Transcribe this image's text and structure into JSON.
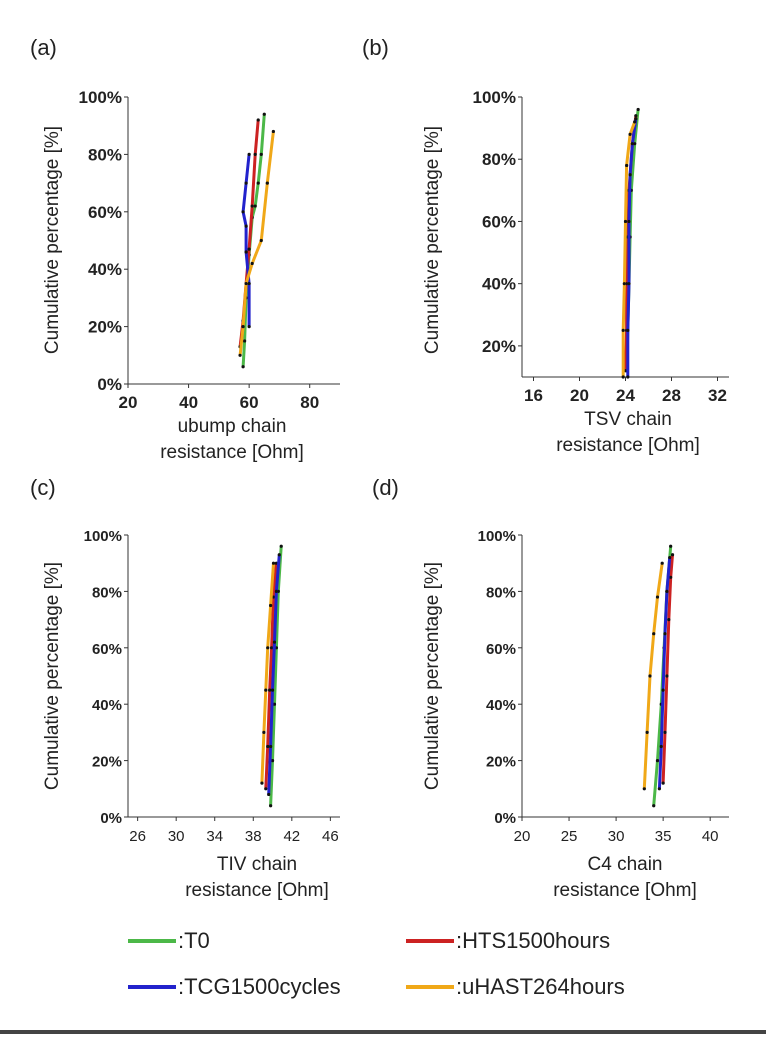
{
  "colors": {
    "T0": "#4cb848",
    "HTS1500hours": "#cc2222",
    "TCG1500cycles": "#2222cc",
    "uHAST264hours": "#f0a818",
    "axis": "#333333",
    "marker": "#111111"
  },
  "legend": [
    {
      "key": "T0",
      "label": ":T0",
      "color": "#4cb848"
    },
    {
      "key": "HTS1500hours",
      "label": ":HTS1500hours",
      "color": "#cc2222"
    },
    {
      "key": "TCG1500cycles",
      "label": ":TCG1500cycles",
      "color": "#2222cc"
    },
    {
      "key": "uHAST264hours",
      "label": ":uHAST264hours",
      "color": "#f0a818"
    }
  ],
  "chart_data": [
    {
      "panel": "(a)",
      "type": "line",
      "title": "",
      "xlabel": "ubump chain resistance [Ohm]",
      "ylabel": "Cumulative percentage [%]",
      "xlim": [
        20,
        90
      ],
      "ylim": [
        0,
        100
      ],
      "xticks": [
        20,
        40,
        60,
        80
      ],
      "xtick_labels": [
        "20",
        "40",
        "60",
        "80"
      ],
      "yticks": [
        0,
        20,
        40,
        60,
        80,
        100
      ],
      "ytick_labels": [
        "0%",
        "20%",
        "40%",
        "60%",
        "80%",
        "100%"
      ],
      "series": [
        {
          "name": ":T0",
          "color": "#4cb848",
          "x": [
            58,
            58.5,
            59,
            60,
            61,
            62,
            63,
            64,
            65
          ],
          "y": [
            6,
            15,
            30,
            45,
            58,
            62,
            70,
            80,
            94
          ]
        },
        {
          "name": ":HTS1500hours",
          "color": "#cc2222",
          "x": [
            57,
            58,
            59,
            60,
            61,
            62,
            63
          ],
          "y": [
            13,
            22,
            35,
            47,
            62,
            80,
            92
          ]
        },
        {
          "name": ":TCG1500cycles",
          "color": "#2222cc",
          "x": [
            60,
            60,
            59,
            59,
            58,
            59,
            60
          ],
          "y": [
            20,
            35,
            46,
            55,
            60,
            70,
            80
          ]
        },
        {
          "name": ":uHAST264hours",
          "color": "#f0a818",
          "x": [
            57,
            58,
            59,
            61,
            64,
            66,
            68
          ],
          "y": [
            10,
            20,
            35,
            42,
            50,
            70,
            88
          ]
        }
      ]
    },
    {
      "panel": "(b)",
      "type": "line",
      "title": "",
      "xlabel": "TSV chain resistance [Ohm]",
      "ylabel": "Cumulative percentage [%]",
      "xlim": [
        15,
        33
      ],
      "ylim": [
        10,
        100
      ],
      "xticks": [
        16,
        20,
        24,
        28,
        32
      ],
      "xtick_labels": [
        "16",
        "20",
        "24",
        "28",
        "32"
      ],
      "yticks": [
        20,
        40,
        60,
        80,
        100
      ],
      "ytick_labels": [
        "20%",
        "40%",
        "60%",
        "80%",
        "100%"
      ],
      "series": [
        {
          "name": ":T0",
          "color": "#4cb848",
          "x": [
            24.1,
            24.2,
            24.3,
            24.4,
            24.5,
            24.8,
            25.1
          ],
          "y": [
            12,
            25,
            40,
            55,
            70,
            85,
            96
          ]
        },
        {
          "name": ":HTS1500hours",
          "color": "#cc2222",
          "x": [
            24,
            24.1,
            24.1,
            24.2,
            24.3,
            24.6,
            24.9
          ],
          "y": [
            12,
            25,
            40,
            55,
            70,
            85,
            94
          ]
        },
        {
          "name": ":TCG1500cycles",
          "color": "#2222cc",
          "x": [
            24.2,
            24.2,
            24.3,
            24.3,
            24.4,
            24.6,
            24.9
          ],
          "y": [
            10,
            25,
            40,
            60,
            75,
            85,
            93
          ]
        },
        {
          "name": ":uHAST264hours",
          "color": "#f0a818",
          "x": [
            23.8,
            23.8,
            23.9,
            24,
            24.1,
            24.4,
            24.8
          ],
          "y": [
            10,
            25,
            40,
            60,
            78,
            88,
            92
          ]
        }
      ]
    },
    {
      "panel": "(c)",
      "type": "line",
      "title": "",
      "xlabel": "TIV chain resistance [Ohm]",
      "ylabel": "Cumulative percentage [%]",
      "xlim": [
        25,
        47
      ],
      "ylim": [
        0,
        100
      ],
      "xticks": [
        26,
        30,
        34,
        38,
        42,
        46
      ],
      "xtick_labels": [
        "26",
        "30",
        "34",
        "38",
        "42",
        "46"
      ],
      "yticks": [
        0,
        20,
        40,
        60,
        80,
        100
      ],
      "ytick_labels": [
        "0%",
        "20%",
        "40%",
        "60%",
        "80%",
        "100%"
      ],
      "series": [
        {
          "name": ":T0",
          "color": "#4cb848",
          "x": [
            39.8,
            40,
            40.2,
            40.4,
            40.6,
            40.9
          ],
          "y": [
            4,
            20,
            40,
            60,
            80,
            96
          ]
        },
        {
          "name": ":HTS1500hours",
          "color": "#cc2222",
          "x": [
            39.3,
            39.5,
            39.7,
            39.9,
            40.1,
            40.4
          ],
          "y": [
            10,
            25,
            45,
            60,
            78,
            90
          ]
        },
        {
          "name": ":TCG1500cycles",
          "color": "#2222cc",
          "x": [
            39.6,
            39.8,
            40,
            40.2,
            40.4,
            40.7
          ],
          "y": [
            8,
            25,
            45,
            62,
            80,
            93
          ]
        },
        {
          "name": ":uHAST264hours",
          "color": "#f0a818",
          "x": [
            38.9,
            39.1,
            39.3,
            39.5,
            39.8,
            40.1
          ],
          "y": [
            12,
            30,
            45,
            60,
            75,
            90
          ]
        }
      ]
    },
    {
      "panel": "(d)",
      "type": "line",
      "title": "",
      "xlabel": "C4 chain resistance [Ohm]",
      "ylabel": "Cumulative percentage [%]",
      "xlim": [
        20,
        42
      ],
      "ylim": [
        0,
        100
      ],
      "xticks": [
        20,
        25,
        30,
        35,
        40
      ],
      "xtick_labels": [
        "20",
        "25",
        "30",
        "35",
        "40"
      ],
      "yticks": [
        0,
        20,
        40,
        60,
        80,
        100
      ],
      "ytick_labels": [
        "0%",
        "20%",
        "40%",
        "60%",
        "80%",
        "100%"
      ],
      "series": [
        {
          "name": ":T0",
          "color": "#4cb848",
          "x": [
            34,
            34.4,
            34.8,
            35.1,
            35.4,
            35.8
          ],
          "y": [
            4,
            20,
            40,
            60,
            80,
            96
          ]
        },
        {
          "name": ":HTS1500hours",
          "color": "#cc2222",
          "x": [
            35,
            35.2,
            35.4,
            35.6,
            35.8,
            36
          ],
          "y": [
            12,
            30,
            50,
            70,
            85,
            93
          ]
        },
        {
          "name": ":TCG1500cycles",
          "color": "#2222cc",
          "x": [
            34.6,
            34.8,
            35,
            35.2,
            35.4,
            35.7
          ],
          "y": [
            10,
            25,
            45,
            65,
            80,
            92
          ]
        },
        {
          "name": ":uHAST264hours",
          "color": "#f0a818",
          "x": [
            33,
            33.3,
            33.6,
            34,
            34.4,
            34.9
          ],
          "y": [
            10,
            30,
            50,
            65,
            78,
            90
          ]
        }
      ]
    }
  ]
}
